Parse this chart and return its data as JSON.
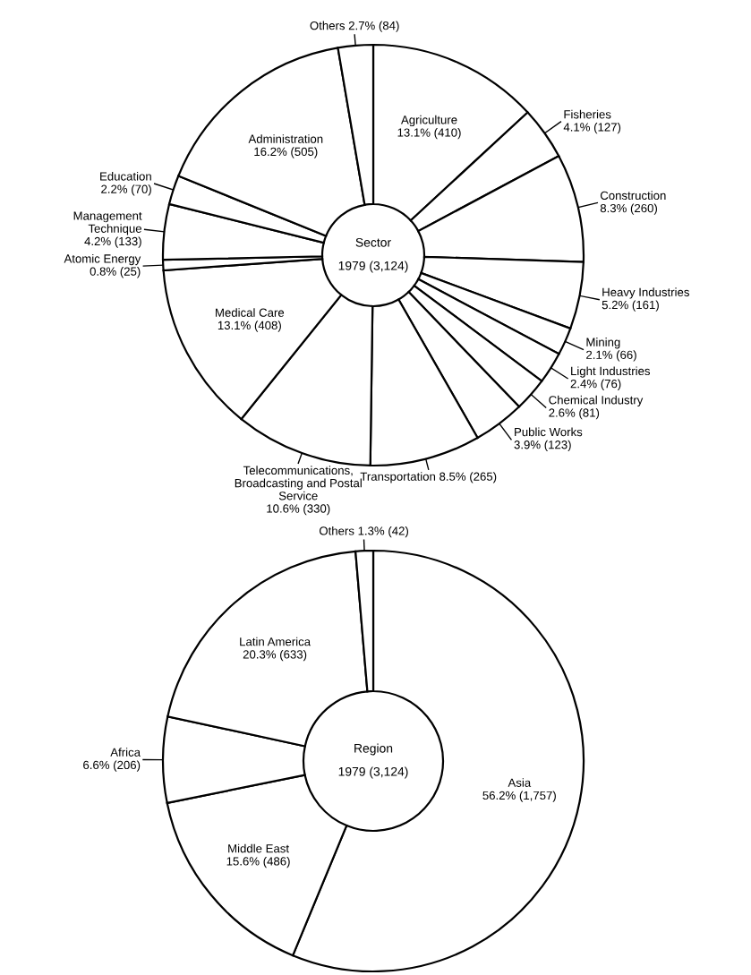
{
  "chart_data": [
    {
      "type": "donut",
      "title": "Sector",
      "subtitle": "1979 (3,124)",
      "categories": [
        "Agriculture",
        "Fisheries",
        "Construction",
        "Heavy Industries",
        "Mining",
        "Light Industries",
        "Chemical Industry",
        "Public Works",
        "Transportation",
        "Telecommunications,\nBroadcasting and Postal\nService",
        "Medical Care",
        "Atomic Energy",
        "Management\nTechnique",
        "Education",
        "Administration",
        "Others"
      ],
      "values": [
        410,
        127,
        260,
        161,
        66,
        76,
        81,
        123,
        265,
        330,
        408,
        25,
        133,
        70,
        505,
        84
      ],
      "value_labels": [
        "13.1% (410)",
        "4.1% (127)",
        "8.3% (260)",
        "5.2% (161)",
        "2.1% (66)",
        "2.4% (76)",
        "2.6% (81)",
        "3.9% (123)",
        "8.5% (265)",
        "10.6% (330)",
        "13.1% (408)",
        "0.8% (25)",
        "4.2% (133)",
        "2.2% (70)",
        "16.2% (505)",
        "2.7% (84)"
      ],
      "colors": [
        "#ffffff",
        "#ffffff",
        "#ffffff",
        "#ffffff",
        "#ffffff",
        "#ffffff",
        "#ffffff",
        "#ffffff",
        "#ffffff",
        "#ffffff",
        "#ffffff",
        "#ffffff",
        "#ffffff",
        "#ffffff",
        "#ffffff",
        "#ffffff"
      ]
    },
    {
      "type": "donut",
      "title": "Region",
      "subtitle": "1979 (3,124)",
      "categories": [
        "Asia",
        "Middle East",
        "Africa",
        "Latin America",
        "Others"
      ],
      "values": [
        1757,
        486,
        206,
        633,
        42
      ],
      "value_labels": [
        "56.2% (1,757)",
        "15.6% (486)",
        "6.6% (206)",
        "20.3% (633)",
        "1.3% (42)"
      ],
      "colors": [
        "#ffffff",
        "#ffffff",
        "#ffffff",
        "#ffffff",
        "#ffffff"
      ]
    }
  ]
}
